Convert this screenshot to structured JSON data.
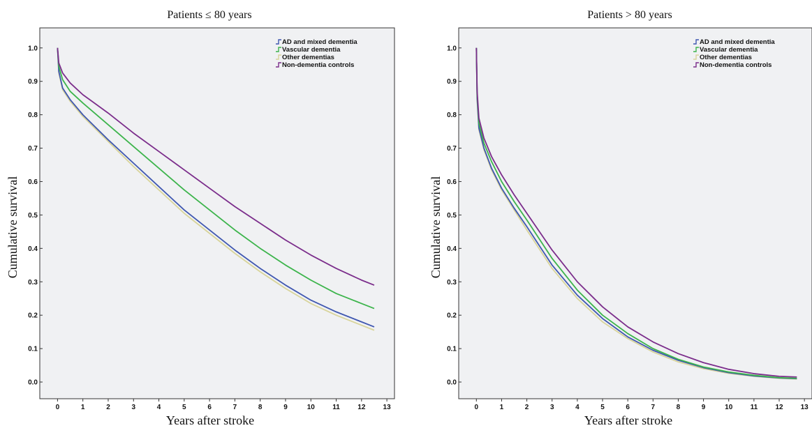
{
  "chart_data": [
    {
      "type": "line",
      "title": "Patients ≤ 80 years",
      "xlabel": "Years after stroke",
      "ylabel": "Cumulative survival",
      "xlim": [
        -0.7,
        13.3
      ],
      "ylim": [
        -0.05,
        1.06
      ],
      "xticks": [
        "0",
        "1",
        "2",
        "3",
        "4",
        "5",
        "6",
        "7",
        "8",
        "9",
        "10",
        "11",
        "12",
        "13"
      ],
      "yticks": [
        "0.0",
        "0.1",
        "0.2",
        "0.3",
        "0.4",
        "0.5",
        "0.6",
        "0.7",
        "0.8",
        "0.9",
        "1.0"
      ],
      "legend_position": "top-right",
      "grid": false,
      "series": [
        {
          "name": "AD and mixed dementia",
          "color": "#3f57b0",
          "x": [
            0,
            0.05,
            0.2,
            0.5,
            1,
            2,
            3,
            4,
            5,
            6,
            7,
            8,
            9,
            10,
            11,
            12,
            12.5
          ],
          "y": [
            1.0,
            0.93,
            0.88,
            0.845,
            0.8,
            0.725,
            0.655,
            0.585,
            0.515,
            0.455,
            0.395,
            0.34,
            0.29,
            0.245,
            0.21,
            0.18,
            0.165
          ]
        },
        {
          "name": "Vascular dementia",
          "color": "#3cb44b",
          "x": [
            0,
            0.05,
            0.2,
            0.5,
            1,
            2,
            3,
            4,
            5,
            6,
            7,
            8,
            9,
            10,
            11,
            12,
            12.5
          ],
          "y": [
            1.0,
            0.945,
            0.905,
            0.87,
            0.835,
            0.77,
            0.705,
            0.64,
            0.575,
            0.515,
            0.455,
            0.4,
            0.35,
            0.305,
            0.265,
            0.235,
            0.22
          ]
        },
        {
          "name": "Other dementias",
          "color": "#d8d49a",
          "x": [
            0,
            0.05,
            0.2,
            0.5,
            1,
            2,
            3,
            4,
            5,
            6,
            7,
            8,
            9,
            10,
            11,
            12,
            12.5
          ],
          "y": [
            1.0,
            0.925,
            0.875,
            0.84,
            0.795,
            0.72,
            0.645,
            0.575,
            0.505,
            0.445,
            0.385,
            0.33,
            0.28,
            0.235,
            0.2,
            0.17,
            0.155
          ]
        },
        {
          "name": "Non-dementia controls",
          "color": "#7b2d8b",
          "x": [
            0,
            0.05,
            0.2,
            0.5,
            1,
            2,
            3,
            4,
            5,
            6,
            7,
            8,
            9,
            10,
            11,
            12,
            12.5
          ],
          "y": [
            1.0,
            0.955,
            0.925,
            0.895,
            0.86,
            0.805,
            0.745,
            0.69,
            0.635,
            0.58,
            0.525,
            0.475,
            0.425,
            0.38,
            0.34,
            0.305,
            0.29
          ]
        }
      ]
    },
    {
      "type": "line",
      "title": "Patients > 80 years",
      "xlabel": "Years after stroke",
      "ylabel": "Cumulative survival",
      "xlim": [
        -0.7,
        13.3
      ],
      "ylim": [
        -0.05,
        1.06
      ],
      "xticks": [
        "0",
        "1",
        "2",
        "3",
        "4",
        "5",
        "6",
        "7",
        "8",
        "9",
        "10",
        "11",
        "12",
        "13"
      ],
      "yticks": [
        "0.0",
        "0.1",
        "0.2",
        "0.3",
        "0.4",
        "0.5",
        "0.6",
        "0.7",
        "0.8",
        "0.9",
        "1.0"
      ],
      "legend_position": "top-right",
      "grid": false,
      "series": [
        {
          "name": "AD and mixed dementia",
          "color": "#3f57b0",
          "x": [
            0,
            0.03,
            0.1,
            0.3,
            0.6,
            1,
            1.5,
            2,
            3,
            4,
            5,
            6,
            7,
            8,
            9,
            10,
            11,
            12,
            12.7
          ],
          "y": [
            1.0,
            0.85,
            0.76,
            0.7,
            0.64,
            0.58,
            0.52,
            0.465,
            0.35,
            0.26,
            0.19,
            0.135,
            0.095,
            0.065,
            0.043,
            0.028,
            0.018,
            0.012,
            0.01
          ]
        },
        {
          "name": "Vascular dementia",
          "color": "#3cb44b",
          "x": [
            0,
            0.03,
            0.1,
            0.3,
            0.6,
            1,
            1.5,
            2,
            3,
            4,
            5,
            6,
            7,
            8,
            9,
            10,
            11,
            12,
            12.7
          ],
          "y": [
            1.0,
            0.86,
            0.775,
            0.715,
            0.66,
            0.6,
            0.54,
            0.485,
            0.37,
            0.275,
            0.2,
            0.145,
            0.1,
            0.068,
            0.045,
            0.03,
            0.02,
            0.013,
            0.011
          ]
        },
        {
          "name": "Other dementias",
          "color": "#d8d49a",
          "x": [
            0,
            0.03,
            0.1,
            0.3,
            0.6,
            1,
            1.5,
            2,
            3,
            4,
            5,
            6,
            7,
            8,
            9,
            10,
            11,
            12,
            12.7
          ],
          "y": [
            1.0,
            0.845,
            0.755,
            0.695,
            0.635,
            0.575,
            0.515,
            0.455,
            0.34,
            0.25,
            0.18,
            0.13,
            0.09,
            0.06,
            0.04,
            0.026,
            0.017,
            0.011,
            0.009
          ]
        },
        {
          "name": "Non-dementia controls",
          "color": "#7b2d8b",
          "x": [
            0,
            0.03,
            0.1,
            0.3,
            0.6,
            1,
            1.5,
            2,
            3,
            4,
            5,
            6,
            7,
            8,
            9,
            10,
            11,
            12,
            12.7
          ],
          "y": [
            1.0,
            0.87,
            0.79,
            0.73,
            0.675,
            0.62,
            0.56,
            0.505,
            0.395,
            0.3,
            0.225,
            0.165,
            0.12,
            0.085,
            0.058,
            0.038,
            0.025,
            0.017,
            0.015
          ]
        }
      ]
    }
  ]
}
